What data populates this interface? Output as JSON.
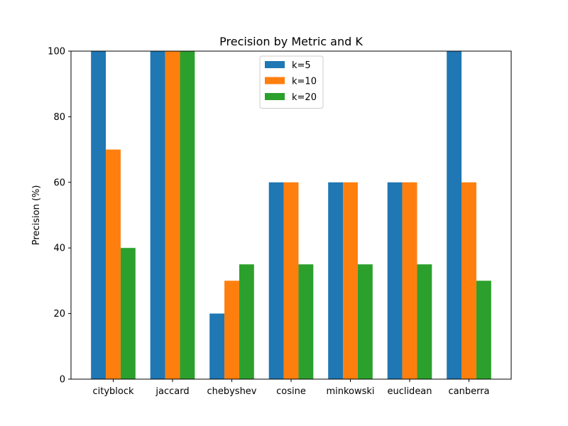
{
  "chart_data": {
    "type": "bar",
    "title": "Precision by Metric and K",
    "xlabel": "",
    "ylabel": "Precision (%)",
    "ylim": [
      0,
      100
    ],
    "yticks": [
      0,
      20,
      40,
      60,
      80,
      100
    ],
    "categories": [
      "cityblock",
      "jaccard",
      "chebyshev",
      "cosine",
      "minkowski",
      "euclidean",
      "canberra"
    ],
    "series": [
      {
        "name": "k=5",
        "color": "#1f77b4",
        "values": [
          100,
          100,
          20,
          60,
          60,
          60,
          100
        ]
      },
      {
        "name": "k=10",
        "color": "#ff7f0e",
        "values": [
          70,
          100,
          30,
          60,
          60,
          60,
          60
        ]
      },
      {
        "name": "k=20",
        "color": "#2ca02c",
        "values": [
          40,
          100,
          35,
          35,
          35,
          35,
          30
        ]
      }
    ],
    "grid": false,
    "legend_position": "top-center"
  }
}
